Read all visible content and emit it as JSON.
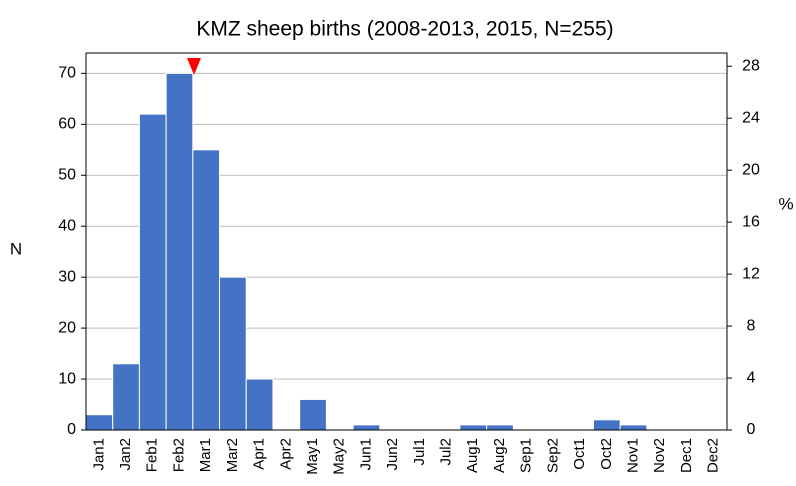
{
  "chart_data": {
    "type": "bar",
    "title": "KMZ sheep births (2008-2013, 2015, N=255)",
    "categories": [
      "Jan1",
      "Jan2",
      "Feb1",
      "Feb2",
      "Mar1",
      "Mar2",
      "Apr1",
      "Apr2",
      "May1",
      "May2",
      "Jun1",
      "Jun2",
      "Jul1",
      "Jul2",
      "Aug1",
      "Aug2",
      "Sep1",
      "Sep2",
      "Oct1",
      "Oct2",
      "Nov1",
      "Nov2",
      "Dec1",
      "Dec2"
    ],
    "values": [
      3,
      13,
      62,
      70,
      55,
      30,
      10,
      0,
      6,
      0,
      1,
      0,
      0,
      0,
      1,
      1,
      0,
      0,
      0,
      2,
      1,
      0,
      0,
      0
    ],
    "color": "#4472c4",
    "ylabel": "N",
    "y2label": "%",
    "ylim": [
      0,
      74
    ],
    "yticks": [
      0,
      10,
      20,
      30,
      40,
      50,
      60,
      70
    ],
    "y2lim": [
      0,
      29.02
    ],
    "y2ticks": [
      0,
      4,
      8,
      12,
      16,
      20,
      24,
      28
    ],
    "grid": true
  }
}
